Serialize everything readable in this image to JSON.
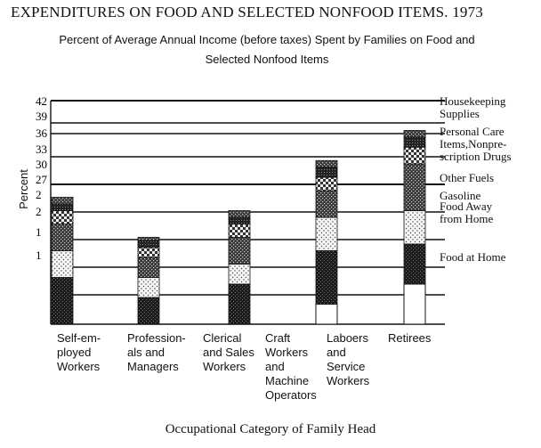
{
  "chart_data": {
    "type": "bar",
    "stacked": true,
    "title": "EXPENDITURES ON FOOD AND SELECTED NONFOOD ITEMS. 1973",
    "subtitle": "Percent of Average Annual Income (before taxes) Spent by Families on Food and Selected Nonfood Items",
    "xlabel": "Occupational Category of Family Head",
    "ylabel": "Percent",
    "y_ticks": [
      "42",
      "39",
      "36",
      "33",
      "30",
      "27",
      "2",
      "2",
      "1",
      "1"
    ],
    "categories": [
      "Self-em-\nployed\nWorkers",
      "Profession-\nals and\nManagers",
      "Clerical\nand Sales\nWorkers",
      "Craft\nWorkers\nand\nMachine\nOperators",
      "Laboers\nand\nService\nWorkers",
      "Retirees"
    ],
    "series": [
      {
        "name": "Food at Home",
        "color": "#1a1a1a",
        "values": [
          7,
          4,
          6,
          null,
          8,
          6
        ]
      },
      {
        "name": "Food Away\nfrom Home",
        "color": "#f4f4f4",
        "values": [
          4,
          3,
          3,
          null,
          5,
          5
        ]
      },
      {
        "name": "Gasoline",
        "color": "#2a2a2a",
        "values": [
          4,
          3,
          4,
          null,
          4,
          7
        ]
      },
      {
        "name": "Other Fuels",
        "color": "#f4f4f4",
        "values": [
          2,
          1.5,
          2,
          null,
          2,
          2.5
        ]
      },
      {
        "name": "Personal Care\nItems,Nonpre-\nscription Drugs",
        "color": "#2a2a2a",
        "values": [
          1,
          1,
          1,
          null,
          1.5,
          1.5
        ]
      },
      {
        "name": "Housekeeping\nSupplies",
        "color": "#1a1a1a",
        "values": [
          1,
          0.5,
          1,
          null,
          1,
          1
        ]
      }
    ],
    "bar_bases": [
      0,
      0,
      0,
      null,
      3,
      6
    ]
  }
}
